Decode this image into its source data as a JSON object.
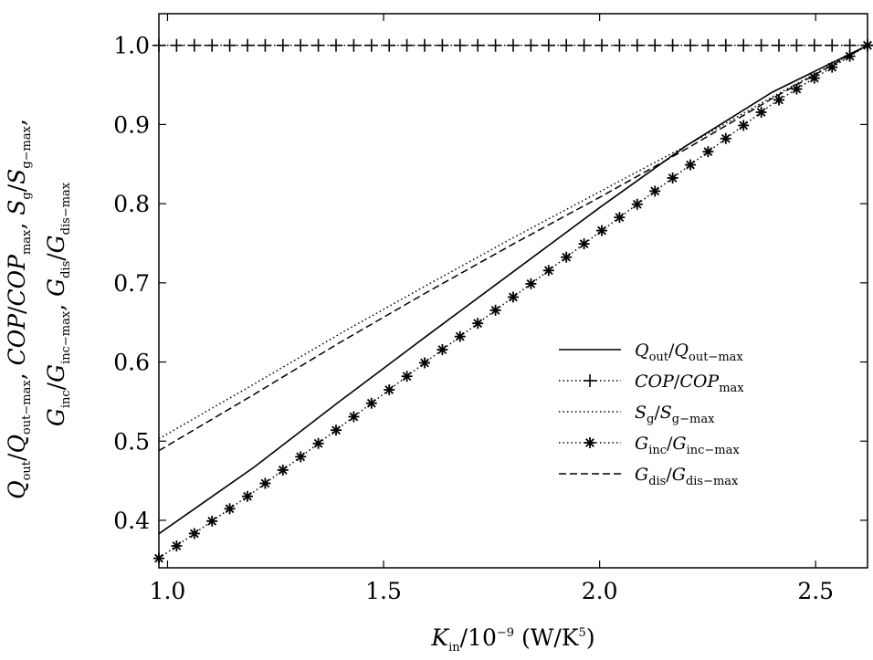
{
  "chart_data": {
    "type": "line",
    "xlabel": "K_in/10^-9 (W/K^5)",
    "ylabel": "Q_out/Q_out-max, COP/COP_max, S_g/S_g-max, G_inc/G_inc-max, G_dis/G_dis-max",
    "xlim": [
      0.98,
      2.62
    ],
    "ylim": [
      0.34,
      1.04
    ],
    "xticks": [
      1.0,
      1.5,
      2.0,
      2.5
    ],
    "yticks": [
      0.4,
      0.5,
      0.6,
      0.7,
      0.8,
      0.9,
      1.0
    ],
    "xtick_labels": [
      "1.0",
      "1.5",
      "2.0",
      "2.5"
    ],
    "ytick_labels": [
      "0.4",
      "0.5",
      "0.6",
      "0.7",
      "0.8",
      "0.9",
      "1.0"
    ],
    "grid": false,
    "legend_position": "center-right",
    "series": [
      {
        "name": "Q_out/Q_out-max",
        "legend": {
          "main": "Q",
          "main_sub": "out",
          "den": "Q",
          "den_sub": "out−max"
        },
        "style": "solid",
        "marker": "none",
        "color": "#000000",
        "x": [
          0.98,
          1.2,
          1.4,
          1.6,
          1.8,
          2.0,
          2.2,
          2.4,
          2.62
        ],
        "y": [
          0.383,
          0.467,
          0.551,
          0.633,
          0.714,
          0.795,
          0.873,
          0.941,
          1.0
        ]
      },
      {
        "name": "COP/COP_max",
        "legend": {
          "main": "COP",
          "main_sub": "",
          "den": "COP",
          "den_sub": "max"
        },
        "style": "dotted",
        "marker": "plus",
        "color": "#000000",
        "x": [
          0.98,
          1.2,
          1.4,
          1.6,
          1.8,
          2.0,
          2.2,
          2.4,
          2.62
        ],
        "y": [
          1.0,
          1.0,
          1.0,
          1.0,
          1.0,
          1.0,
          1.0,
          1.0,
          1.0
        ]
      },
      {
        "name": "S_g/S_g-max",
        "legend": {
          "main": "S",
          "main_sub": "g",
          "den": "S",
          "den_sub": "g−max"
        },
        "style": "dotted",
        "marker": "none",
        "color": "#000000",
        "x": [
          0.98,
          1.2,
          1.4,
          1.6,
          1.8,
          2.0,
          2.2,
          2.4,
          2.62
        ],
        "y": [
          0.503,
          0.572,
          0.636,
          0.697,
          0.757,
          0.815,
          0.873,
          0.935,
          1.0
        ]
      },
      {
        "name": "G_inc/G_inc-max",
        "legend": {
          "main": "G",
          "main_sub": "inc",
          "den": "G",
          "den_sub": "inc−max"
        },
        "style": "dotted",
        "marker": "asterisk",
        "color": "#000000",
        "x": [
          0.98,
          1.2,
          1.4,
          1.6,
          1.8,
          2.0,
          2.2,
          2.4,
          2.62
        ],
        "y": [
          0.352,
          0.436,
          0.518,
          0.601,
          0.682,
          0.764,
          0.845,
          0.926,
          1.0
        ]
      },
      {
        "name": "G_dis/G_dis-max",
        "legend": {
          "main": "G",
          "main_sub": "dis",
          "den": "G",
          "den_sub": "dis−max"
        },
        "style": "dashed",
        "marker": "none",
        "color": "#000000",
        "x": [
          0.98,
          1.2,
          1.4,
          1.6,
          1.8,
          2.0,
          2.2,
          2.4,
          2.62
        ],
        "y": [
          0.488,
          0.559,
          0.625,
          0.688,
          0.749,
          0.808,
          0.869,
          0.933,
          1.0
        ]
      }
    ]
  }
}
